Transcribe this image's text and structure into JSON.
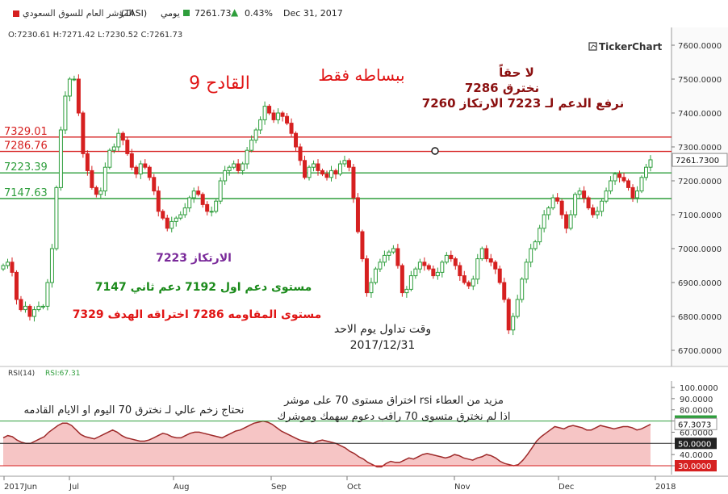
{
  "header": {
    "symbol_name": "المؤشر العام للسوق السعودي",
    "symbol_code": "(TASI)",
    "period": "يومي",
    "last_price": "7261.73",
    "change_pct": "0.43%",
    "date": "Dec 31, 2017",
    "colors": {
      "up": "#2e9e3c",
      "down": "#d62020"
    }
  },
  "ohlc": "O:7230.61  H:7271.42  L:7230.52  C:7261.73",
  "brand": "TickerChart",
  "chart_data": [
    {
      "type": "candlestick",
      "title": "",
      "x_labels": [
        "2017Jun",
        "Jul",
        "Aug",
        "Sep",
        "Oct",
        "Nov",
        "Dec",
        "2018"
      ],
      "ylim": [
        6650,
        7620
      ],
      "y_ticks": [
        "7600.0000",
        "7500.0000",
        "7400.0000",
        "7300.0000",
        "7200.0000",
        "7100.0000",
        "7000.0000",
        "6900.0000",
        "6800.0000",
        "6700.0000"
      ],
      "last_price_label": "7261.7300",
      "grid": false,
      "close_series": [
        6950,
        6960,
        6930,
        6850,
        6820,
        6830,
        6800,
        6820,
        6830,
        6830,
        6900,
        7000,
        7180,
        7350,
        7450,
        7500,
        7500,
        7400,
        7280,
        7230,
        7180,
        7160,
        7170,
        7240,
        7290,
        7300,
        7340,
        7320,
        7280,
        7240,
        7220,
        7250,
        7240,
        7210,
        7170,
        7110,
        7090,
        7060,
        7080,
        7090,
        7100,
        7120,
        7150,
        7170,
        7160,
        7130,
        7110,
        7110,
        7140,
        7200,
        7230,
        7240,
        7250,
        7230,
        7250,
        7290,
        7320,
        7350,
        7380,
        7420,
        7400,
        7380,
        7400,
        7390,
        7370,
        7340,
        7300,
        7260,
        7210,
        7240,
        7250,
        7230,
        7220,
        7210,
        7230,
        7220,
        7250,
        7260,
        7240,
        7150,
        7050,
        6970,
        6870,
        6900,
        6940,
        6960,
        6980,
        6990,
        7000,
        6950,
        6870,
        6880,
        6920,
        6940,
        6960,
        6950,
        6940,
        6920,
        6930,
        6960,
        6980,
        6970,
        6950,
        6920,
        6900,
        6890,
        6910,
        6970,
        7000,
        6970,
        6960,
        6940,
        6900,
        6850,
        6760,
        6800,
        6850,
        6910,
        6960,
        7000,
        7020,
        7060,
        7100,
        7120,
        7150,
        7140,
        7100,
        7060,
        7100,
        7160,
        7170,
        7150,
        7120,
        7100,
        7110,
        7140,
        7170,
        7200,
        7220,
        7210,
        7200,
        7180,
        7150,
        7170,
        7210,
        7240,
        7262
      ],
      "horizontal_lines": [
        {
          "label": "7329.01",
          "value": 7329.01,
          "color": "#d62020"
        },
        {
          "label": "7286.76",
          "value": 7286.76,
          "color": "#d62020"
        },
        {
          "label": "7223.39",
          "value": 7223.39,
          "color": "#2e9e3c"
        },
        {
          "label": "7147.63",
          "value": 7147.63,
          "color": "#2e9e3c"
        }
      ],
      "annotations": {
        "a1": "القادح 9",
        "a2": "ببساطه فقط",
        "a3_l1": "لا حقاً",
        "a3_l2": "نخترق 7286",
        "a3_l3": "نرفع الدعم لـ 7223 الارتكاز 7260",
        "a4": "الارتكاز 7223",
        "a5": "مستوى دعم اول 7192 دعم ثاني 7147",
        "a6": "مستوى المقاومه 7286 اختراقه الهدف 7329",
        "a7_l1": "وقت تداول يوم الاحد",
        "a7_l2": "2017/12/31"
      }
    },
    {
      "type": "area",
      "title": "RSI(14)",
      "value_label": "RSI:67.31",
      "ylim": [
        20,
        110
      ],
      "y_ticks": [
        "100.0000",
        "90.0000",
        "80.0000",
        "70.0000",
        "60.0000",
        "50.0000",
        "40.0000",
        "30.0000"
      ],
      "levels": [
        {
          "label": "70.0000",
          "value": 70,
          "color": "#2e9e3c"
        },
        {
          "label": "50.0000",
          "value": 50,
          "color": "#222222"
        },
        {
          "label": "30.0000",
          "value": 30,
          "color": "#d62020"
        }
      ],
      "current_label": "67.3073",
      "series": [
        55,
        57,
        56,
        53,
        51,
        50,
        50,
        52,
        54,
        56,
        60,
        63,
        66,
        68,
        68,
        66,
        62,
        58,
        56,
        55,
        54,
        56,
        58,
        60,
        62,
        60,
        57,
        55,
        54,
        53,
        52,
        52,
        53,
        55,
        57,
        59,
        58,
        56,
        55,
        55,
        57,
        59,
        60,
        60,
        59,
        58,
        57,
        56,
        55,
        57,
        59,
        61,
        62,
        64,
        66,
        68,
        69,
        70,
        69,
        67,
        64,
        61,
        59,
        57,
        55,
        53,
        52,
        51,
        50,
        52,
        53,
        52,
        51,
        50,
        48,
        46,
        43,
        41,
        38,
        36,
        33,
        31,
        29,
        29,
        32,
        34,
        33,
        33,
        35,
        37,
        36,
        38,
        40,
        41,
        40,
        39,
        38,
        37,
        38,
        40,
        39,
        37,
        36,
        35,
        37,
        38,
        40,
        39,
        37,
        34,
        32,
        31,
        30,
        31,
        35,
        40,
        46,
        52,
        56,
        59,
        62,
        65,
        64,
        63,
        65,
        66,
        65,
        64,
        62,
        62,
        64,
        66,
        65,
        64,
        63,
        64,
        65,
        65,
        64,
        62,
        63,
        65,
        67
      ],
      "annotations": {
        "b1": "نحتاج زخم عالي لـ نخترق 70 اليوم او الايام القادمه",
        "b2_l1": "اختراق  مستوى 70 على موشر rsi مزيد من العطاء",
        "b2_l2": "اذا لم نخترق متسوى 70 راقب دعوم سهمك  وموشرك"
      }
    }
  ]
}
